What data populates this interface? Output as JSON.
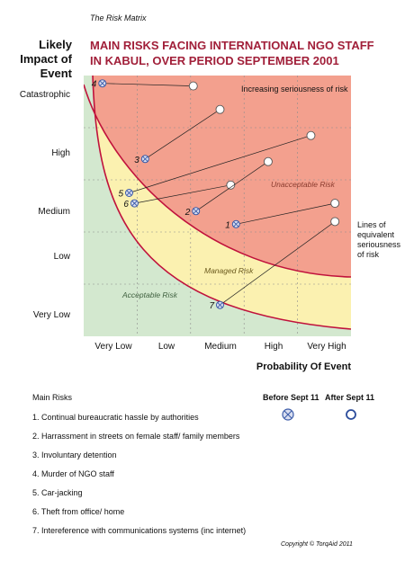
{
  "header": {
    "doc_label": "The Risk Matrix"
  },
  "title": {
    "line1": "MAIN RISKS FACING INTERNATIONAL NGO STAFF",
    "line2": "IN KABUL, OVER PERIOD SEPTEMBER 2001"
  },
  "y_axis": {
    "title_line1": "Likely",
    "title_line2": "Impact of",
    "title_line3": "Event",
    "ticks": [
      "Catastrophic",
      "High",
      "Medium",
      "Low",
      "Very Low"
    ]
  },
  "x_axis": {
    "title": "Probability Of Event",
    "ticks": [
      "Very Low",
      "Low",
      "Medium",
      "High",
      "Very High"
    ]
  },
  "zones": {
    "increasing": "Increasing seriousness of risk",
    "unacceptable": "Unacceptable Risk",
    "managed": "Managed Risk",
    "acceptable": "Acceptable Risk"
  },
  "colors": {
    "unacceptable": "#f3a08e",
    "managed": "#fbf1b0",
    "acceptable": "#d3e8cf",
    "curve": "#c0123c",
    "marker": "#3b5ba8",
    "title": "#a11f39"
  },
  "side_note": {
    "line1": "Lines of",
    "line2": "equivalent",
    "line3": "seriousness",
    "line4": "of risk"
  },
  "risk_points": [
    {
      "label": "4",
      "before": [
        0.35,
        4.85
      ],
      "after": [
        2.05,
        4.8
      ]
    },
    {
      "label": "3",
      "before": [
        1.15,
        3.4
      ],
      "after": [
        2.55,
        4.35
      ]
    },
    {
      "label": "5",
      "before": [
        0.85,
        2.75
      ],
      "after": [
        4.25,
        3.85
      ]
    },
    {
      "label": "6",
      "before": [
        0.95,
        2.55
      ],
      "after": [
        2.75,
        2.9
      ]
    },
    {
      "label": "2",
      "before": [
        2.1,
        2.4
      ],
      "after": [
        3.45,
        3.35
      ]
    },
    {
      "label": "1",
      "before": [
        2.85,
        2.15
      ],
      "after": [
        4.7,
        2.55
      ]
    },
    {
      "label": "7",
      "before": [
        2.55,
        0.6
      ],
      "after": [
        4.7,
        2.2
      ]
    }
  ],
  "legend": {
    "title": "Main Risks",
    "before_label": "Before Sept 11",
    "after_label": "After Sept 11",
    "items": [
      "1. Continual bureaucratic hassle by authorities",
      "2. Harrassment in streets on female staff/ family members",
      "3. Involuntary detention",
      "4. Murder of NGO staff",
      "5. Car-jacking",
      "6. Theft from office/ home",
      "7. Intereference with communications systems (inc internet)"
    ]
  },
  "copyright": "Copyright © TorqAid 2011"
}
